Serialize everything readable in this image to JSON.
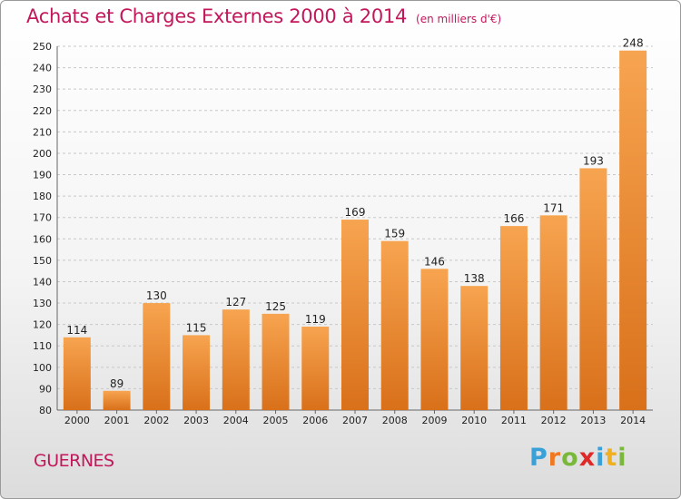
{
  "header": {
    "title": "Achats et Charges Externes 2000 à 2014",
    "unit": "(en milliers d'€)"
  },
  "footer": {
    "place": "GUERNES",
    "logo_letters": [
      {
        "ch": "P",
        "color": "#3aa0d8"
      },
      {
        "ch": "r",
        "color": "#f07820"
      },
      {
        "ch": "o",
        "color": "#7ab83a"
      },
      {
        "ch": "x",
        "color": "#e02828"
      },
      {
        "ch": "i",
        "color": "#3aa0d8"
      },
      {
        "ch": "t",
        "color": "#f0b020"
      },
      {
        "ch": "i",
        "color": "#7ab83a"
      }
    ]
  },
  "chart_data": {
    "type": "bar",
    "title": "Achats et Charges Externes 2000 à 2014",
    "subtitle": "(en milliers d'€)",
    "categories": [
      "2000",
      "2001",
      "2002",
      "2003",
      "2004",
      "2005",
      "2006",
      "2007",
      "2008",
      "2009",
      "2010",
      "2011",
      "2012",
      "2013",
      "2014"
    ],
    "values": [
      114,
      89,
      130,
      115,
      127,
      125,
      119,
      169,
      159,
      146,
      138,
      166,
      171,
      193,
      248
    ],
    "ylim": [
      80,
      250
    ],
    "yticks": [
      80,
      90,
      100,
      110,
      120,
      130,
      140,
      150,
      160,
      170,
      180,
      190,
      200,
      210,
      220,
      230,
      240,
      250
    ],
    "grid": true,
    "bar_color_light": "#f7a450",
    "bar_color_dark": "#d9701a"
  }
}
